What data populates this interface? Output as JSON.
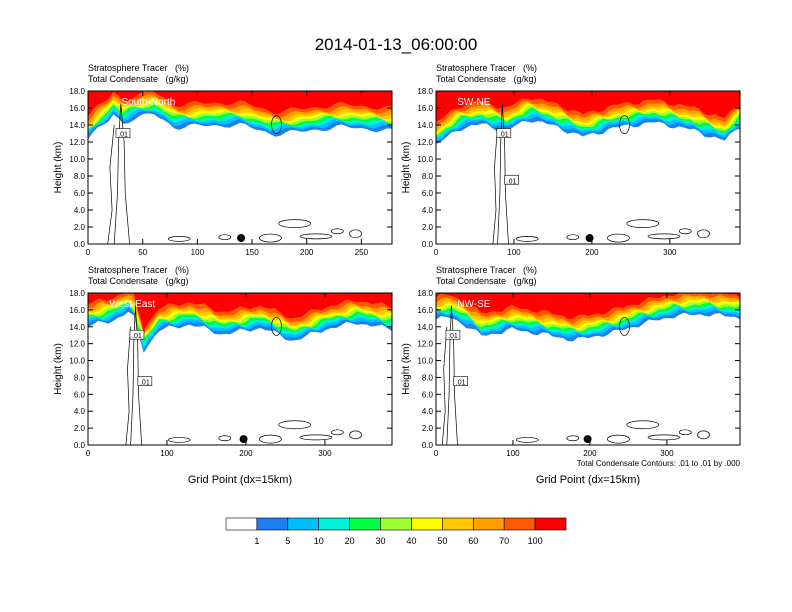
{
  "title": "2014-01-13_06:00:00",
  "colorbar": {
    "colors": [
      "#ffffff",
      "#1e7ff0",
      "#00bfff",
      "#00f0d8",
      "#00ff40",
      "#a0ff30",
      "#ffff00",
      "#ffc800",
      "#ffa000",
      "#ff5a00",
      "#ff0000"
    ],
    "labels": [
      "1",
      "5",
      "10",
      "20",
      "30",
      "40",
      "50",
      "60",
      "70",
      "100"
    ]
  },
  "chart_data": [
    {
      "type": "heatmap",
      "id": "p1",
      "label": "South-North",
      "lines": [
        "Stratosphere Tracer   (%)",
        "Total Condensate   (g/kg)"
      ],
      "ylabel": "Height (km)",
      "xlabel": "",
      "xlim": [
        0,
        278
      ],
      "ylim": [
        0,
        18
      ],
      "xticks": [
        0,
        50,
        100,
        150,
        200,
        250
      ],
      "yticks": [
        "0.0",
        "2.0",
        "4.0",
        "6.0",
        "8.0",
        "10.0",
        "12.0",
        "14.0",
        "16.0",
        "18.0"
      ],
      "tropopause_km": [
        [
          0,
          13.2
        ],
        [
          10,
          14.5
        ],
        [
          20,
          15.5
        ],
        [
          25,
          16.5
        ],
        [
          30,
          15.0
        ],
        [
          40,
          15.6
        ],
        [
          60,
          16.2
        ],
        [
          80,
          14.6
        ],
        [
          100,
          14.8
        ],
        [
          140,
          14.9
        ],
        [
          170,
          13.8
        ],
        [
          200,
          14.2
        ],
        [
          230,
          14.7
        ],
        [
          278,
          14.2
        ]
      ],
      "contour_labels": [
        ".01"
      ],
      "marker_x": 140
    },
    {
      "type": "heatmap",
      "id": "p2",
      "label": "SW-NE",
      "lines": [
        "Stratosphere Tracer   (%)",
        "Total Condensate   (g/kg)"
      ],
      "ylabel": "Height (km)",
      "xlabel": "",
      "xlim": [
        0,
        390
      ],
      "ylim": [
        0,
        18
      ],
      "xticks": [
        0,
        100,
        200,
        300
      ],
      "yticks": [
        "0.0",
        "2.0",
        "4.0",
        "6.0",
        "8.0",
        "10.0",
        "12.0",
        "14.0",
        "16.0",
        "18.0"
      ],
      "tropopause_km": [
        [
          0,
          12.5
        ],
        [
          30,
          14.5
        ],
        [
          60,
          15.0
        ],
        [
          90,
          14.2
        ],
        [
          120,
          15.6
        ],
        [
          150,
          14.8
        ],
        [
          190,
          13.5
        ],
        [
          230,
          14.6
        ],
        [
          280,
          15.2
        ],
        [
          330,
          14.3
        ],
        [
          370,
          13.0
        ],
        [
          390,
          14.8
        ]
      ],
      "contour_labels": [
        ".01",
        ".01"
      ],
      "marker_x": 197
    },
    {
      "type": "heatmap",
      "id": "p3",
      "label": "West-East",
      "lines": [
        "Stratosphere Tracer   (%)",
        "Total Condensate   (g/kg)"
      ],
      "ylabel": "Height (km)",
      "xlabel": "Grid Point (dx=15km)",
      "xlim": [
        0,
        385
      ],
      "ylim": [
        0,
        18
      ],
      "xticks": [
        0,
        100,
        200,
        300
      ],
      "yticks": [
        "0.0",
        "2.0",
        "4.0",
        "6.0",
        "8.0",
        "10.0",
        "12.0",
        "14.0",
        "16.0",
        "18.0"
      ],
      "tropopause_km": [
        [
          0,
          15.0
        ],
        [
          30,
          15.6
        ],
        [
          55,
          16.8
        ],
        [
          70,
          12.0
        ],
        [
          90,
          14.5
        ],
        [
          130,
          15.2
        ],
        [
          170,
          14.0
        ],
        [
          220,
          14.8
        ],
        [
          260,
          13.2
        ],
        [
          300,
          14.6
        ],
        [
          340,
          15.4
        ],
        [
          385,
          14.6
        ]
      ],
      "contour_labels": [
        ".01",
        ".01"
      ],
      "marker_x": 197
    },
    {
      "type": "heatmap",
      "id": "p4",
      "label": "NW-SE",
      "lines": [
        "Stratosphere Tracer   (%)",
        "Total Condensate   (g/kg)"
      ],
      "ylabel": "Height (km)",
      "xlabel": "Grid Point (dx=15km)",
      "xlim": [
        0,
        395
      ],
      "ylim": [
        0,
        18
      ],
      "xticks": [
        0,
        100,
        200,
        300
      ],
      "yticks": [
        "0.0",
        "2.0",
        "4.0",
        "6.0",
        "8.0",
        "10.0",
        "12.0",
        "14.0",
        "16.0",
        "18.0"
      ],
      "tropopause_km": [
        [
          0,
          15.8
        ],
        [
          20,
          16.0
        ],
        [
          40,
          15.0
        ],
        [
          60,
          13.8
        ],
        [
          100,
          14.6
        ],
        [
          140,
          14.0
        ],
        [
          180,
          13.3
        ],
        [
          230,
          14.2
        ],
        [
          270,
          15.3
        ],
        [
          310,
          16.2
        ],
        [
          350,
          16.4
        ],
        [
          395,
          16.0
        ]
      ],
      "contour_labels": [
        ".01",
        ".01"
      ],
      "marker_x": 197,
      "footnote": "Total Condensate Contours: .01 to .01 by .000"
    }
  ]
}
